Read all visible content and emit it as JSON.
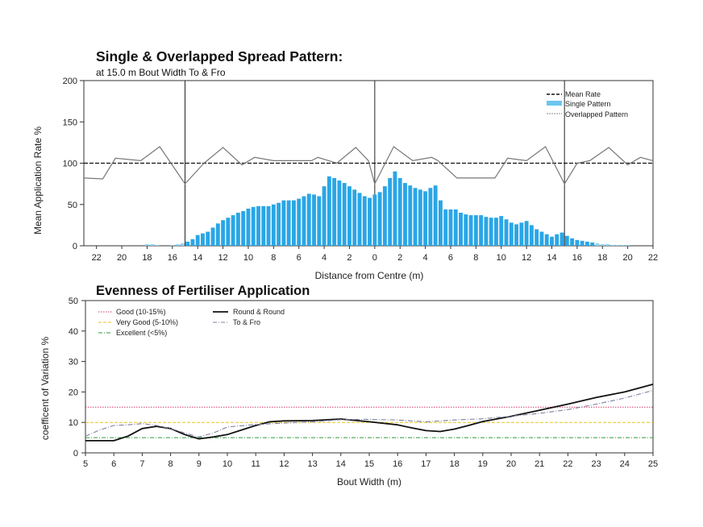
{
  "chart_data": [
    {
      "type": "bar",
      "title": "Single & Overlapped Spread Pattern:",
      "subtitle": "at 15.0 m Bout Width To & Fro",
      "xlabel": "Distance from Centre (m)",
      "ylabel": "Mean Application Rate %",
      "ylim": [
        0,
        200
      ],
      "yticks": [
        0,
        50,
        100,
        150,
        200
      ],
      "xlim": [
        -23,
        22
      ],
      "xtick_labels": [
        "22",
        "20",
        "18",
        "16",
        "14",
        "12",
        "10",
        "8",
        "6",
        "4",
        "2",
        "0",
        "2",
        "4",
        "6",
        "8",
        "10",
        "12",
        "14",
        "16",
        "18",
        "20",
        "22"
      ],
      "xtick_positions": [
        -22,
        -20,
        -18,
        -16,
        -14,
        -12,
        -10,
        -8,
        -6,
        -4,
        -2,
        0,
        2,
        4,
        6,
        8,
        10,
        12,
        14,
        16,
        18,
        20,
        22
      ],
      "vertical_markers": [
        -15,
        0,
        15
      ],
      "legend": {
        "position": "top-right",
        "entries": [
          "Mean Rate",
          "Single Pattern",
          "Overlapped Pattern"
        ]
      },
      "mean_rate": 100,
      "colors": {
        "single": "#2aa6e6",
        "single_light": "#8fd2f2",
        "overlapped": "#777777",
        "mean": "#111111"
      },
      "single_pattern": {
        "x": [
          -18,
          -17.6,
          -17.2,
          -16,
          -15.6,
          -15.2,
          -14.8,
          -14.4,
          -14,
          -13.6,
          -13.2,
          -12.8,
          -12.4,
          -12,
          -11.6,
          -11.2,
          -10.8,
          -10.4,
          -10,
          -9.6,
          -9.2,
          -8.8,
          -8.4,
          -8,
          -7.6,
          -7.2,
          -6.8,
          -6.4,
          -6,
          -5.6,
          -5.2,
          -4.8,
          -4.4,
          -4,
          -3.6,
          -3.2,
          -2.8,
          -2.4,
          -2,
          -1.6,
          -1.2,
          -0.8,
          -0.4,
          0,
          0.4,
          0.8,
          1.2,
          1.6,
          2,
          2.4,
          2.8,
          3.2,
          3.6,
          4,
          4.4,
          4.8,
          5.2,
          5.6,
          6,
          6.4,
          6.8,
          7.2,
          7.6,
          8,
          8.4,
          8.8,
          9.2,
          9.6,
          10,
          10.4,
          10.8,
          11.2,
          11.6,
          12,
          12.4,
          12.8,
          13.2,
          13.6,
          14,
          14.4,
          14.8,
          15.2,
          15.6,
          16,
          16.4,
          16.8,
          17.2,
          17.6,
          18,
          18.4,
          18.8,
          19.2,
          19.6,
          20
        ],
        "values": [
          2,
          2,
          1,
          1,
          2,
          3,
          5,
          8,
          13,
          15,
          17,
          22,
          27,
          31,
          34,
          37,
          40,
          42,
          45,
          47,
          48,
          48,
          48,
          50,
          52,
          55,
          55,
          55,
          57,
          60,
          63,
          62,
          60,
          72,
          84,
          82,
          79,
          76,
          72,
          68,
          64,
          60,
          58,
          62,
          65,
          72,
          82,
          90,
          82,
          76,
          73,
          70,
          68,
          66,
          70,
          73,
          55,
          44,
          44,
          44,
          40,
          38,
          37,
          37,
          37,
          35,
          34,
          34,
          36,
          32,
          28,
          26,
          28,
          30,
          25,
          20,
          17,
          14,
          11,
          14,
          16,
          12,
          9,
          7,
          6,
          5,
          4,
          3,
          2,
          2,
          1,
          1,
          1,
          1
        ]
      },
      "overlapped_pattern": {
        "x": [
          -23,
          -21.5,
          -20.5,
          -18.5,
          -17,
          -15,
          -13.5,
          -12,
          -10.5,
          -9.5,
          -8,
          -6.5,
          -5,
          -4.5,
          -3,
          -1.5,
          -0.5,
          0,
          1.5,
          3,
          4.5,
          5,
          6.5,
          8,
          9.5,
          10.5,
          12,
          13.5,
          15,
          16,
          17,
          18.5,
          20,
          21,
          22
        ],
        "values": [
          82,
          81,
          106,
          103,
          120,
          75,
          100,
          119,
          98,
          107,
          103,
          103,
          103,
          107,
          100,
          119,
          103,
          75,
          120,
          103,
          107,
          103,
          82,
          82,
          82,
          106,
          103,
          120,
          75,
          100,
          103,
          119,
          98,
          107,
          103
        ]
      }
    },
    {
      "type": "line",
      "title": "Evenness of Fertiliser Application",
      "xlabel": "Bout Width (m)",
      "ylabel": "coefficent of Variation %",
      "xlim": [
        5,
        25
      ],
      "ylim": [
        0,
        50
      ],
      "x": [
        5,
        6,
        7,
        8,
        9,
        10,
        11,
        12,
        13,
        14,
        15,
        16,
        17,
        18,
        19,
        20,
        21,
        22,
        23,
        24,
        25
      ],
      "yticks": [
        0,
        10,
        20,
        30,
        40,
        50
      ],
      "reference_lines": [
        {
          "name": "Good (10-15%)",
          "value": 15,
          "color": "#d23c6e"
        },
        {
          "name": "Very Good (5-10%)",
          "value": 10,
          "color": "#e9c21a"
        },
        {
          "name": "Excellent (<5%)",
          "value": 5,
          "color": "#2e9b3b"
        }
      ],
      "legend": {
        "position": "top",
        "entries": [
          "Good (10-15%)",
          "Very Good (5-10%)",
          "Excellent (<5%)",
          "Round & Round",
          "To & Fro"
        ]
      },
      "series": [
        {
          "name": "Round & Round",
          "color": "#111111",
          "x": [
            5,
            5.5,
            6,
            6.5,
            7,
            7.5,
            8,
            8.5,
            9,
            9.5,
            10,
            10.5,
            11,
            11.5,
            12,
            13,
            14,
            15,
            16,
            16.5,
            17,
            17.5,
            18,
            18.5,
            19,
            20,
            21,
            22,
            23,
            24,
            25
          ],
          "values": [
            4,
            4,
            4,
            5.5,
            8,
            8.7,
            8,
            6,
            4.6,
            5.2,
            6,
            7.5,
            9,
            10.2,
            10.5,
            10.6,
            11.1,
            10.2,
            9.2,
            8.2,
            7.3,
            7,
            7.8,
            9,
            10.3,
            12,
            14,
            16,
            18.2,
            20,
            22.5
          ]
        },
        {
          "name": "To & Fro",
          "color": "#7c80a0",
          "x": [
            5,
            5.5,
            6,
            6.5,
            7,
            7.5,
            8,
            8.5,
            9,
            9.5,
            10,
            11,
            12,
            13,
            14,
            15,
            16,
            17,
            18,
            19,
            20,
            21,
            22,
            23,
            24,
            25
          ],
          "values": [
            5.5,
            7.5,
            9,
            9.2,
            9.6,
            9,
            8,
            6.5,
            5.2,
            6.5,
            8.5,
            9.3,
            9.8,
            10.2,
            10.9,
            11,
            10.8,
            10.2,
            10.8,
            11.2,
            12,
            13,
            14.2,
            16,
            18,
            20.5
          ]
        }
      ]
    }
  ]
}
